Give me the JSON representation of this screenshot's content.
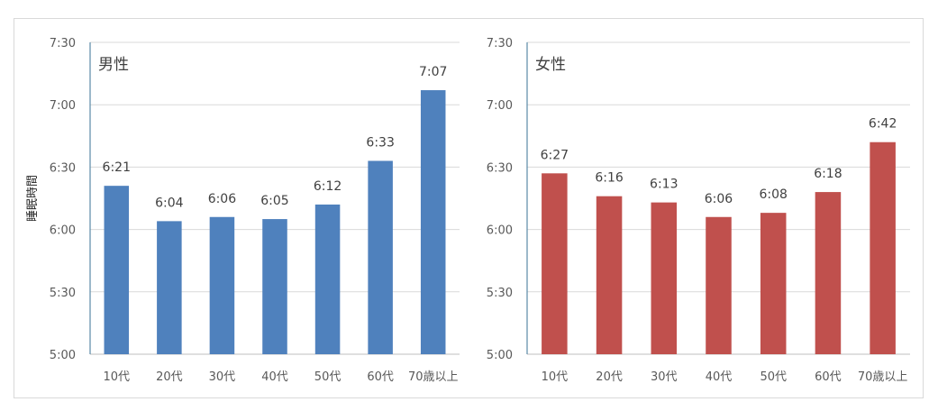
{
  "chart_data": [
    {
      "type": "bar",
      "title": "男性",
      "ylabel": "睡眠時間",
      "categories": [
        "10代",
        "20代",
        "30代",
        "40代",
        "50代",
        "60代",
        "70歳以上"
      ],
      "series": [
        {
          "values": [
            "6:21",
            "6:04",
            "6:06",
            "6:05",
            "6:12",
            "6:33",
            "7:07"
          ],
          "color": "#4f81bd"
        }
      ],
      "ylim": [
        "5:00",
        "7:30"
      ],
      "yticks": [
        "5:00",
        "5:30",
        "6:00",
        "6:30",
        "7:00",
        "7:30"
      ],
      "grid": true
    },
    {
      "type": "bar",
      "title": "女性",
      "ylabel": "",
      "categories": [
        "10代",
        "20代",
        "30代",
        "40代",
        "50代",
        "60代",
        "70歳以上"
      ],
      "series": [
        {
          "values": [
            "6:27",
            "6:16",
            "6:13",
            "6:06",
            "6:08",
            "6:18",
            "6:42"
          ],
          "color": "#c0504d"
        }
      ],
      "ylim": [
        "5:00",
        "7:30"
      ],
      "yticks": [
        "5:00",
        "5:30",
        "6:00",
        "6:30",
        "7:00",
        "7:30"
      ],
      "grid": true
    }
  ]
}
